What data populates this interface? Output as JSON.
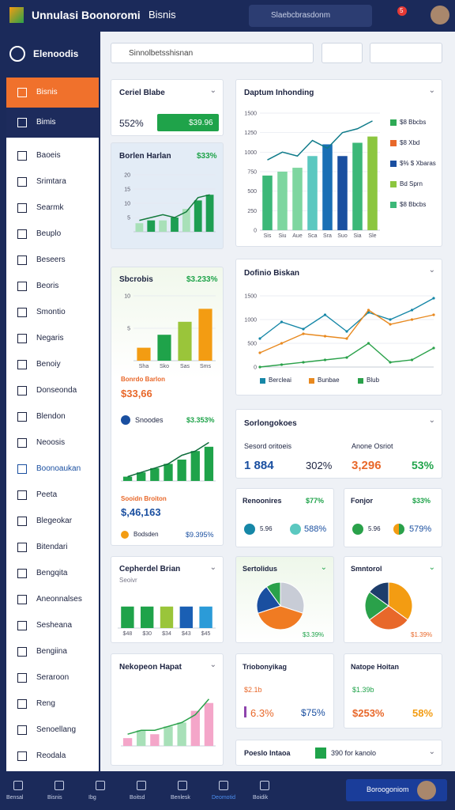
{
  "header": {
    "app_title": "Unnulasi Boonoromi",
    "tab": "Bisnis",
    "search_placeholder": "Slaebcbrasdonm",
    "badge": "5"
  },
  "sidebar": {
    "brand": "Elenoodis",
    "items": [
      "Bisnis",
      "Bimis",
      "Baoeis",
      "Srimtara",
      "Searmk",
      "Beuplo",
      "Beseers",
      "Beoris",
      "Smontio",
      "Negaris",
      "Benoiy",
      "Donseonda",
      "Blendon",
      "Neoosis",
      "Boonoaukan",
      "Peeta",
      "Blegeokar",
      "Bitendari",
      "Bengqita",
      "Aneonnalses",
      "Sesheana",
      "Bengiina",
      "Seraroon",
      "Reng",
      "Senoellang",
      "Reodala"
    ]
  },
  "toolbar": {
    "search_placeholder": "Sinnolbetsshisnan"
  },
  "cards": [
    {
      "title": "Ceriel Blabe",
      "value": "552%",
      "button": "$39.96"
    },
    {
      "title": "Borlen Harlan",
      "badge": "$33%",
      "chart": {
        "type": "bar",
        "values": [
          3,
          4,
          4,
          5,
          8,
          11,
          13
        ],
        "colors": [
          "#a8e0b8",
          "#1e9e52",
          "#a8e0b8",
          "#1e9e52",
          "#a8e0b8",
          "#1e9e52",
          "#1e9e52"
        ],
        "ylim": [
          0,
          20
        ],
        "yticks": [
          5,
          10,
          15,
          20
        ],
        "line": {
          "color": "#137a3c",
          "values": [
            4,
            5,
            6,
            5,
            7,
            12,
            13
          ]
        }
      }
    },
    {
      "title": "Daptum Inhonding",
      "legend": [
        {
          "label": "$8 Bbcbs",
          "color": "#2eaa55"
        },
        {
          "label": "$8 Xbd",
          "color": "#e8682a"
        },
        {
          "label": "$% $ Xbaras",
          "color": "#1a4fa0"
        },
        {
          "label": "Bd Sprn",
          "color": "#8cc63f"
        },
        {
          "label": "$8 Bbcbs",
          "color": "#3cb878"
        }
      ],
      "chart": {
        "type": "bar",
        "categories": [
          "Sis",
          "Siu",
          "Aue",
          "Sca",
          "Sra",
          "Suo",
          "Sia",
          "Sle"
        ],
        "values": [
          700,
          750,
          800,
          950,
          1100,
          950,
          1120,
          1200
        ],
        "colors": [
          "#3cb878",
          "#7ed6a0",
          "#7ed6a0",
          "#5bc8c0",
          "#1a6fb5",
          "#1a4fa0",
          "#3cb878",
          "#8cc63f"
        ],
        "ylim": [
          0,
          1500
        ],
        "yticks": [
          0,
          250,
          500,
          750,
          1000,
          1250,
          1500
        ],
        "line": {
          "color": "#0f7b8a",
          "values": [
            900,
            1000,
            950,
            1150,
            1050,
            1250,
            1300,
            1400
          ]
        }
      }
    },
    {
      "title": "Sbcrobis",
      "badge": "$3.233%",
      "chart": {
        "type": "bar",
        "categories": [
          "Sha",
          "Sko",
          "Sas",
          "Sms"
        ],
        "values": [
          2,
          4,
          6,
          8
        ],
        "colors": [
          "#f39c12",
          "#1fa34a",
          "#9ac53a",
          "#f39c12"
        ],
        "ylim": [
          0,
          10
        ],
        "yticks": [
          5,
          10
        ]
      },
      "label": "Bonrdo Barlon",
      "value": "$33,66",
      "sub": "Snoodes",
      "sub_value": "$3.353%",
      "chart2": {
        "type": "bar",
        "values": [
          1,
          2,
          3,
          4,
          5,
          7,
          8
        ],
        "colors": [
          "#1fa34a",
          "#1fa34a",
          "#1fa34a",
          "#1fa34a",
          "#1fa34a",
          "#1fa34a",
          "#1fa34a"
        ],
        "ylim": [
          0,
          10
        ],
        "line": {
          "color": "#0d6b3a",
          "values": [
            1,
            2,
            3,
            4,
            6,
            7,
            9
          ]
        }
      },
      "label2": "Sooidn Broiton",
      "value2": "$,46,163",
      "sub2": "Bodsden",
      "sub_value2": "$9.395%"
    },
    {
      "title": "Dofinio Biskan",
      "chart": {
        "type": "line",
        "ylim": [
          0,
          1500
        ],
        "yticks": [
          0,
          500,
          1000,
          1500
        ],
        "series": [
          {
            "name": "Bercleai",
            "color": "#1687a7",
            "values": [
              600,
              950,
              800,
              1100,
              750,
              1150,
              1000,
              1200,
              1450
            ]
          },
          {
            "name": "Bunbae",
            "color": "#e8891f",
            "values": [
              300,
              500,
              700,
              650,
              600,
              1200,
              900,
              1000,
              1100
            ]
          },
          {
            "name": "Blub",
            "color": "#2aa14a",
            "values": [
              0,
              50,
              100,
              150,
              200,
              500,
              100,
              150,
              400
            ]
          }
        ]
      }
    },
    {
      "title": "Sorlongokoes",
      "labels": [
        "Sesord oritoeis",
        "Anone Osriot"
      ],
      "values": [
        "1 884",
        "302%",
        "3,296",
        "53%"
      ]
    },
    {
      "title": "Renoonires",
      "badge": "$77%",
      "small": "5.96",
      "value": "588%"
    },
    {
      "title": "Fonjor",
      "badge": "$33%",
      "small": "5.96",
      "value": "579%"
    },
    {
      "title": "Cepherdel Brian",
      "subtitle": "Seoivr",
      "chart": {
        "type": "bar",
        "categories": [
          "$48",
          "$30",
          "$34",
          "$43",
          "$45"
        ],
        "values": [
          20,
          20,
          20,
          20,
          20
        ],
        "colors": [
          "#1fa34a",
          "#1fa34a",
          "#9ac53a",
          "#1a5fb4",
          "#2b9bd8"
        ],
        "ylim": [
          0,
          25
        ]
      }
    },
    {
      "title": "Sertolidus",
      "value": "$3.39%",
      "chart": {
        "type": "pie",
        "values": [
          30,
          40,
          20,
          10
        ],
        "colors": [
          "#c8ccd6",
          "#f07b22",
          "#1a4fa0",
          "#2aa14a"
        ]
      }
    },
    {
      "title": "Smntorol",
      "value": "$1.39%",
      "chart": {
        "type": "pie",
        "values": [
          35,
          30,
          20,
          15
        ],
        "colors": [
          "#f39c12",
          "#e8682a",
          "#2aa14a",
          "#1d3d6b"
        ]
      }
    },
    {
      "title": "Nekopeon Hapat",
      "chart": {
        "type": "bar",
        "values": [
          2,
          4,
          3,
          5,
          6,
          9,
          11
        ],
        "colors": [
          "#f4a6c9",
          "#a8e0b8",
          "#f4a6c9",
          "#a8e0b8",
          "#a8e0b8",
          "#f4a6c9",
          "#f4a6c9"
        ],
        "ylim": [
          0,
          15
        ],
        "line": {
          "color": "#2aa14a",
          "values": [
            3,
            4,
            4,
            5,
            6,
            8,
            12
          ]
        }
      }
    },
    {
      "title": "Triobonyikag",
      "small": "$2.1b",
      "values": [
        "6.3%",
        "$75%"
      ]
    },
    {
      "title": "Natope Hoitan",
      "small": "$1.39b",
      "values": [
        "$253%",
        "58%"
      ]
    },
    {
      "title": "Poeslo Intaoa",
      "value": "390 for kanolo"
    }
  ],
  "bottom_nav": {
    "items": [
      "Bensal",
      "Bisnis",
      "Ibg",
      "Boitsd",
      "Benlesk",
      "Deomotid",
      "Boidik"
    ],
    "button": "Boroogoniom"
  }
}
